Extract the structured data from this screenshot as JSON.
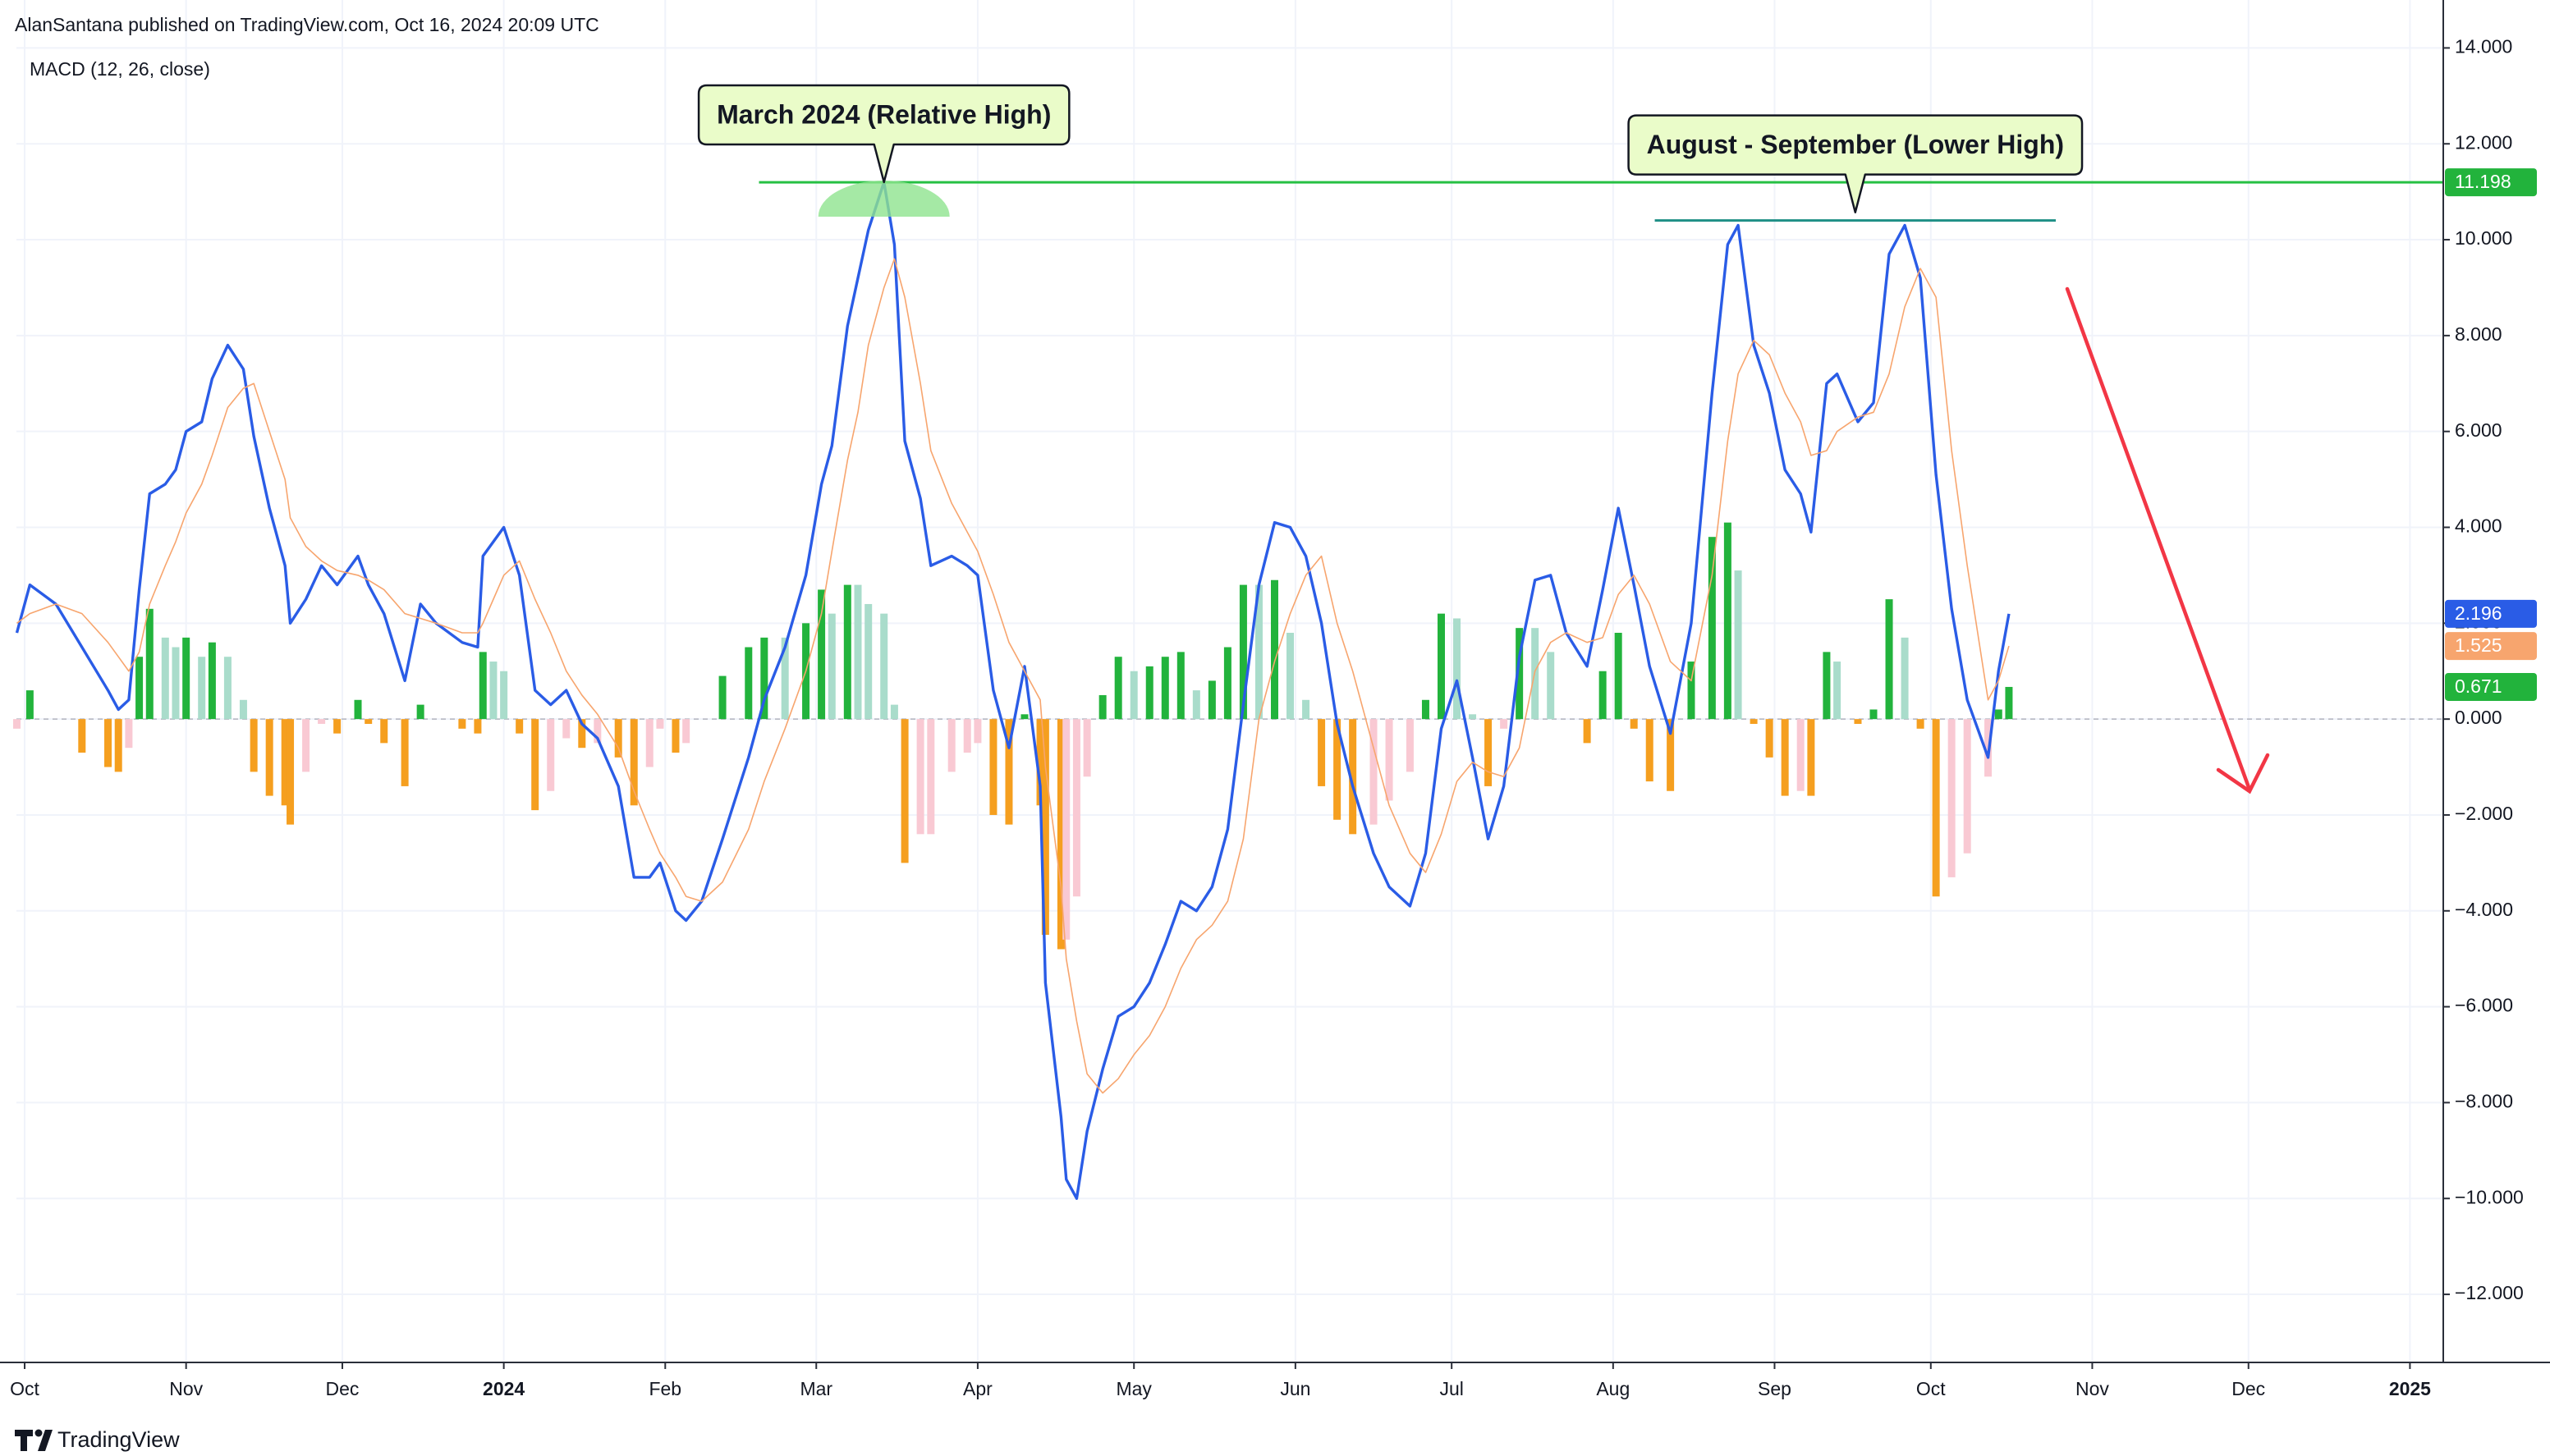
{
  "header": "AlanSantana published on TradingView.com, Oct 16, 2024 20:09 UTC",
  "footer": "TradingView",
  "chart_data": {
    "type": "macd",
    "title": "MACD (12, 26, close)",
    "xlim": [
      -1.58,
      464.4
    ],
    "ylim": [
      -13.42,
      15.0
    ],
    "xticks": [
      {
        "value": 0,
        "label": "Oct"
      },
      {
        "value": 31,
        "label": "Nov"
      },
      {
        "value": 61,
        "label": "Dec"
      },
      {
        "value": 92,
        "label": "2024"
      },
      {
        "value": 123,
        "label": "Feb"
      },
      {
        "value": 152,
        "label": "Mar"
      },
      {
        "value": 183,
        "label": "Apr"
      },
      {
        "value": 213,
        "label": "May"
      },
      {
        "value": 244,
        "label": "Jun"
      },
      {
        "value": 274,
        "label": "Jul"
      },
      {
        "value": 305,
        "label": "Aug"
      },
      {
        "value": 336,
        "label": "Sep"
      },
      {
        "value": 366,
        "label": "Oct"
      },
      {
        "value": 397,
        "label": "Nov"
      },
      {
        "value": 427,
        "label": "Dec"
      },
      {
        "value": 458,
        "label": "2025"
      }
    ],
    "yticks": [
      {
        "value": 14,
        "label": "14.000"
      },
      {
        "value": 12,
        "label": "12.000"
      },
      {
        "value": 10,
        "label": "10.000"
      },
      {
        "value": 8,
        "label": "8.000"
      },
      {
        "value": 6,
        "label": "6.000"
      },
      {
        "value": 4,
        "label": "4.000"
      },
      {
        "value": 2,
        "label": "2.000"
      },
      {
        "value": 0,
        "label": "0.000"
      },
      {
        "value": -2,
        "label": "−2.000"
      },
      {
        "value": -4,
        "label": "−4.000"
      },
      {
        "value": -6,
        "label": "−6.000"
      },
      {
        "value": -8,
        "label": "−8.000"
      },
      {
        "value": -10,
        "label": "−10.000"
      },
      {
        "value": -12,
        "label": "−12.000"
      }
    ],
    "grid": true,
    "zero_line": 0,
    "x": [
      -1.5,
      1,
      6,
      11,
      16,
      18,
      20,
      22,
      24,
      27,
      29,
      31,
      34,
      36,
      39,
      42,
      44,
      47,
      50,
      51,
      54,
      57,
      60,
      64,
      66,
      69,
      73,
      76,
      79,
      84,
      87,
      88,
      90,
      92,
      95,
      98,
      101,
      104,
      107,
      110,
      114,
      117,
      120,
      122,
      125,
      127,
      130,
      134,
      139,
      142,
      146,
      150,
      153,
      155,
      158,
      160,
      162,
      165,
      167,
      169,
      172,
      174,
      178,
      181,
      183,
      186,
      189,
      192,
      195,
      196,
      199,
      200,
      202,
      204,
      207,
      210,
      213,
      216,
      219,
      222,
      225,
      228,
      231,
      234,
      237,
      240,
      243,
      246,
      249,
      252,
      255,
      259,
      262,
      266,
      269,
      272,
      275,
      278,
      281,
      284,
      287,
      290,
      293,
      296,
      300,
      303,
      306,
      309,
      312,
      316,
      320,
      324,
      327,
      329,
      332,
      335,
      338,
      341,
      343,
      346,
      348,
      352,
      355,
      358,
      361,
      364,
      367,
      370,
      373,
      377,
      379,
      381
    ],
    "series": [
      {
        "style": "line",
        "color": "#2a5ce6",
        "width": 3.4,
        "values": [
          1.8,
          2.8,
          2.4,
          1.5,
          0.6,
          0.2,
          0.4,
          2.7,
          4.7,
          4.9,
          5.2,
          6.0,
          6.2,
          7.1,
          7.8,
          7.3,
          5.9,
          4.4,
          3.2,
          2.0,
          2.5,
          3.2,
          2.8,
          3.4,
          2.8,
          2.2,
          0.8,
          2.4,
          2.0,
          1.6,
          1.5,
          3.4,
          3.7,
          4.0,
          3.0,
          0.6,
          0.3,
          0.6,
          -0.1,
          -0.4,
          -1.4,
          -3.3,
          -3.3,
          -3.0,
          -4.0,
          -4.2,
          -3.8,
          -2.5,
          -0.8,
          0.4,
          1.5,
          3.0,
          4.9,
          5.7,
          8.2,
          9.2,
          10.2,
          11.2,
          9.9,
          5.8,
          4.6,
          3.2,
          3.4,
          3.2,
          3.0,
          0.6,
          -0.6,
          1.1,
          -1.4,
          -5.5,
          -8.3,
          -9.6,
          -10.0,
          -8.6,
          -7.3,
          -6.2,
          -6.0,
          -5.5,
          -4.7,
          -3.8,
          -4.0,
          -3.5,
          -2.3,
          0.3,
          2.8,
          4.1,
          4.0,
          3.4,
          2.0,
          -0.1,
          -1.4,
          -2.8,
          -3.5,
          -3.9,
          -2.8,
          -0.2,
          0.8,
          -0.8,
          -2.5,
          -1.4,
          1.3,
          2.9,
          3.0,
          1.8,
          1.1,
          2.7,
          4.4,
          2.8,
          1.1,
          -0.3,
          2.0,
          6.8,
          9.9,
          10.3,
          7.8,
          6.8,
          5.2,
          4.7,
          3.9,
          7.0,
          7.2,
          6.2,
          6.6,
          9.7,
          10.3,
          9.2,
          5.1,
          2.3,
          0.4,
          -0.8,
          1.0,
          2.196
        ]
      },
      {
        "style": "line",
        "color": "#f7a56e",
        "width": 1.6,
        "values": [
          2.0,
          2.2,
          2.4,
          2.2,
          1.6,
          1.3,
          1.0,
          1.4,
          2.4,
          3.2,
          3.7,
          4.3,
          4.9,
          5.5,
          6.5,
          6.9,
          7.0,
          6.0,
          5.0,
          4.2,
          3.6,
          3.3,
          3.1,
          3.0,
          2.9,
          2.7,
          2.2,
          2.1,
          2.0,
          1.8,
          1.8,
          2.0,
          2.5,
          3.0,
          3.3,
          2.5,
          1.8,
          1.0,
          0.5,
          0.1,
          -0.6,
          -1.5,
          -2.3,
          -2.8,
          -3.3,
          -3.7,
          -3.8,
          -3.4,
          -2.3,
          -1.3,
          -0.2,
          1.0,
          2.2,
          3.5,
          5.4,
          6.4,
          7.8,
          9.0,
          9.6,
          8.8,
          7.0,
          5.6,
          4.5,
          3.9,
          3.5,
          2.6,
          1.6,
          1.0,
          0.4,
          -1.0,
          -3.5,
          -5.0,
          -6.3,
          -7.4,
          -7.8,
          -7.5,
          -7.0,
          -6.6,
          -6.0,
          -5.2,
          -4.6,
          -4.3,
          -3.8,
          -2.5,
          0.0,
          1.2,
          2.2,
          3.0,
          3.4,
          2.0,
          1.0,
          -0.6,
          -1.8,
          -2.8,
          -3.2,
          -2.4,
          -1.3,
          -0.9,
          -1.1,
          -1.2,
          -0.6,
          1.0,
          1.6,
          1.8,
          1.6,
          1.7,
          2.6,
          3.0,
          2.4,
          1.2,
          0.8,
          3.0,
          5.8,
          7.2,
          7.9,
          7.6,
          6.8,
          6.2,
          5.5,
          5.6,
          6.0,
          6.3,
          6.4,
          7.2,
          8.6,
          9.4,
          8.8,
          5.6,
          3.2,
          0.4,
          0.8,
          1.525
        ]
      },
      {
        "style": "histogram",
        "colors": [
          "#22b33c",
          "#a9dccb",
          "#f59f1f",
          "#f9c9d3"
        ],
        "color": "#22b33c",
        "values": [
          -0.2,
          0.6,
          0.0,
          -0.7,
          -1.0,
          -1.1,
          -0.6,
          1.3,
          2.3,
          1.7,
          1.5,
          1.7,
          1.3,
          1.6,
          1.3,
          0.4,
          -1.1,
          -1.6,
          -1.8,
          -2.2,
          -1.1,
          -0.1,
          -0.3,
          0.4,
          -0.1,
          -0.5,
          -1.4,
          0.3,
          0.0,
          -0.2,
          -0.3,
          1.4,
          1.2,
          1.0,
          -0.3,
          -1.9,
          -1.5,
          -0.4,
          -0.6,
          -0.5,
          -0.8,
          -1.8,
          -1.0,
          -0.2,
          -0.7,
          -0.5,
          0.0,
          0.9,
          1.5,
          1.7,
          1.7,
          2.0,
          2.7,
          2.2,
          2.8,
          2.8,
          2.4,
          2.2,
          0.3,
          -3.0,
          -2.4,
          -2.4,
          -1.1,
          -0.7,
          -0.5,
          -2.0,
          -2.2,
          0.1,
          -1.8,
          -4.5,
          -4.8,
          -4.6,
          -3.7,
          -1.2,
          0.5,
          1.3,
          1.0,
          1.1,
          1.3,
          1.4,
          0.6,
          0.8,
          1.5,
          2.8,
          2.8,
          2.9,
          1.8,
          0.4,
          -1.4,
          -2.1,
          -2.4,
          -2.2,
          -1.7,
          -1.1,
          0.4,
          2.2,
          2.1,
          0.1,
          -1.4,
          -0.2,
          1.9,
          1.9,
          1.4,
          0.0,
          -0.5,
          1.0,
          1.8,
          -0.2,
          -1.3,
          -1.5,
          1.2,
          3.8,
          4.1,
          3.1,
          -0.1,
          -0.8,
          -1.6,
          -1.5,
          -1.6,
          1.4,
          1.2,
          -0.1,
          0.2,
          2.5,
          1.7,
          -0.2,
          -3.7,
          -3.3,
          -2.8,
          -1.2,
          0.2,
          0.671
        ]
      }
    ],
    "horizontal_lines": [
      {
        "value": 11.198,
        "color": "#26c043",
        "badge_color": "#22b33c",
        "x": [
          141,
          464.4
        ]
      },
      {
        "value": 10.4,
        "color": "#1f8f86",
        "x": [
          313,
          390
        ]
      }
    ],
    "annotations": [
      {
        "text": "March 2024 (Relative High)"
      },
      {
        "text": "August - September (Lower High)"
      }
    ]
  }
}
